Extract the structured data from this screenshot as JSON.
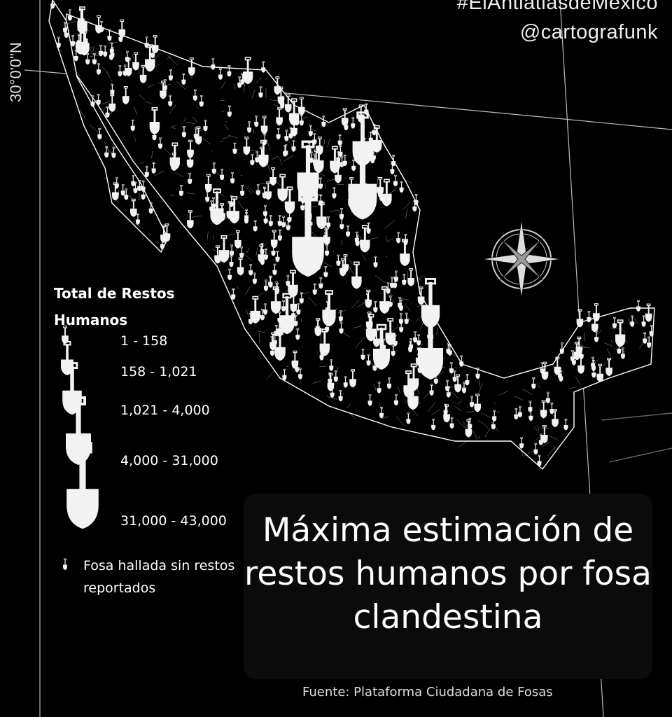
{
  "credits": {
    "hashtag": "#ElAntiatlasdeMéxico",
    "handle": "@cartografunk"
  },
  "graticule": {
    "latitude_label": "30°0'0\"N"
  },
  "legend": {
    "title": "Total de Restos Humanos",
    "classes": [
      "1 - 158",
      "158 - 1,021",
      "1,021 - 4,000",
      "4,000 - 31,000",
      "31,000 - 43,000"
    ],
    "no_remains_label": "Fosa hallada sin restos reportados"
  },
  "title": "Máxima estimación de restos humanos por fosa clandestina",
  "source": "Fuente: Plataforma Ciudadana de Fosas",
  "icons": {
    "symbol": "shovel-icon",
    "north": "compass-rose-icon"
  },
  "colors": {
    "background": "#000000",
    "symbol": "#f2f2f2",
    "boundaries": "#ffffff"
  }
}
